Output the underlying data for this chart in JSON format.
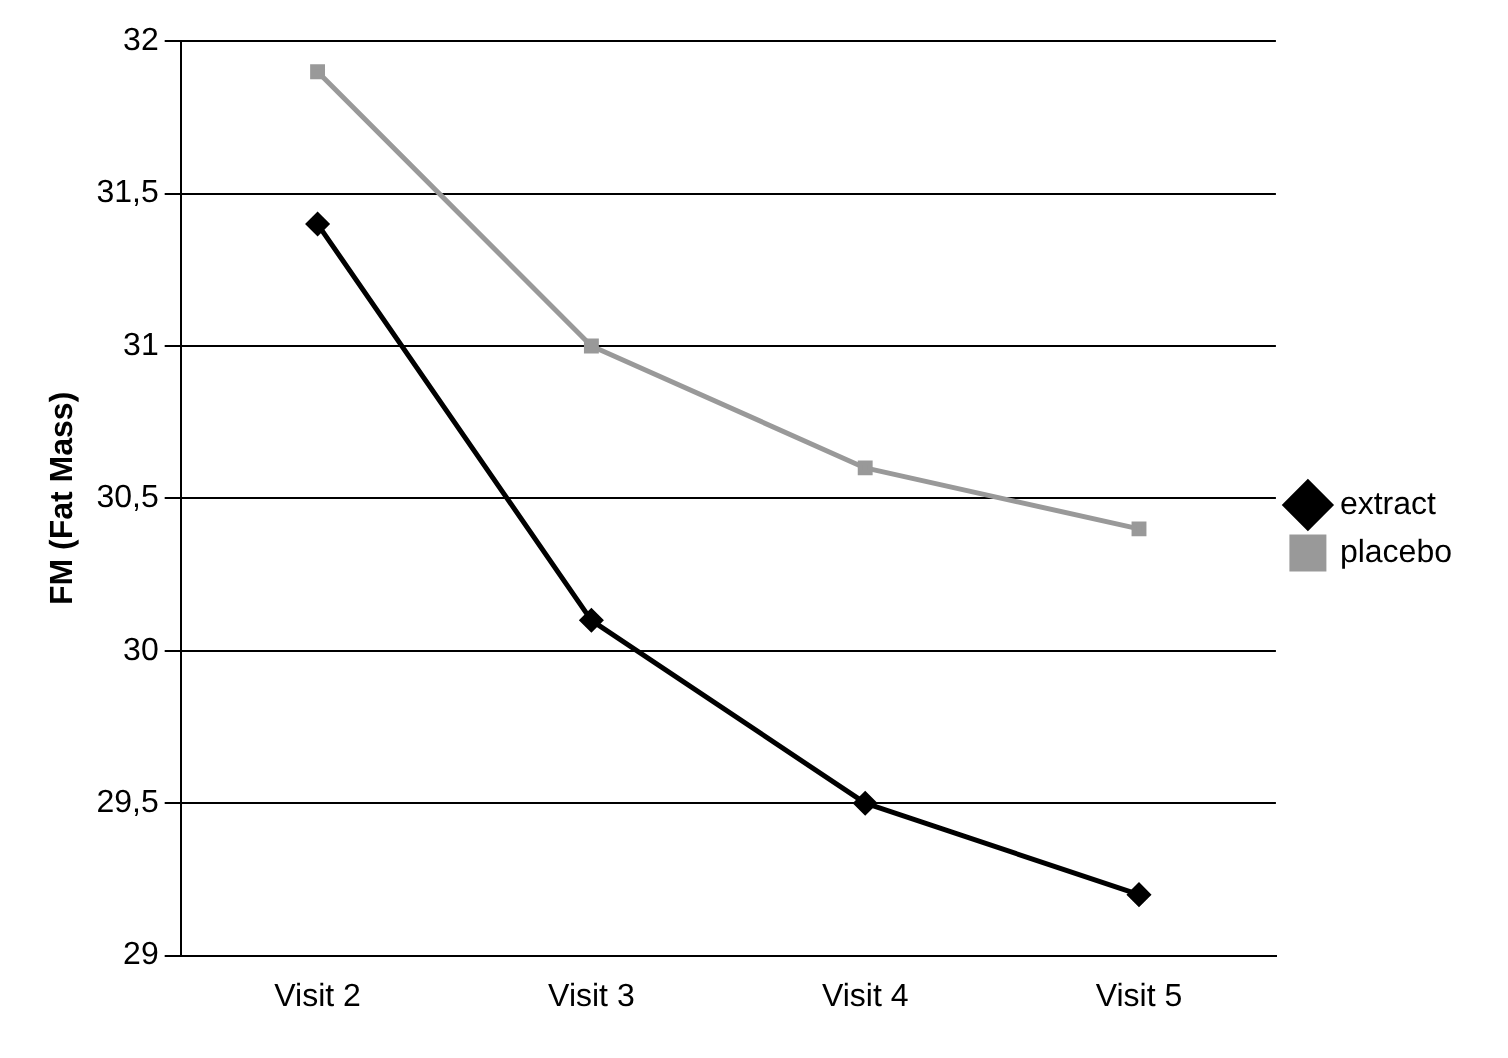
{
  "chart_data": {
    "type": "line",
    "ylabel": "FM (Fat Mass)",
    "categories": [
      "Visit 2",
      "Visit 3",
      "Visit 4",
      "Visit 5"
    ],
    "series": [
      {
        "name": "extract",
        "color": "#000000",
        "marker": "diamond",
        "values": [
          31.4,
          30.1,
          29.5,
          29.2
        ]
      },
      {
        "name": "placebo",
        "color": "#999999",
        "marker": "square",
        "values": [
          31.9,
          31.0,
          30.6,
          30.4
        ]
      }
    ],
    "ylim": [
      29,
      32
    ],
    "yticks": [
      {
        "value": 29,
        "label": "29"
      },
      {
        "value": 29.5,
        "label": "29,5"
      },
      {
        "value": 30,
        "label": "30"
      },
      {
        "value": 30.5,
        "label": "30,5"
      },
      {
        "value": 31,
        "label": "31"
      },
      {
        "value": 31.5,
        "label": "31,5"
      },
      {
        "value": 32,
        "label": "32"
      }
    ],
    "grid": "y",
    "legend": "right",
    "line_style": "solid"
  }
}
